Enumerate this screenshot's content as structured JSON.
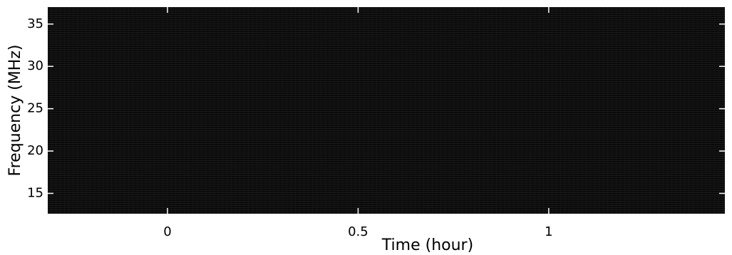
{
  "chart_data": {
    "type": "spectrogram",
    "xlabel": "Time (hour)",
    "ylabel": "Frequency (MHz)",
    "xlim": [
      -0.314,
      1.462
    ],
    "xticks": [
      0,
      0.5,
      1
    ],
    "ylim": [
      12.6,
      37
    ],
    "yticks": [
      15,
      20,
      25,
      30,
      35
    ],
    "background": "#000000",
    "tick_color": "#ffffff"
  }
}
